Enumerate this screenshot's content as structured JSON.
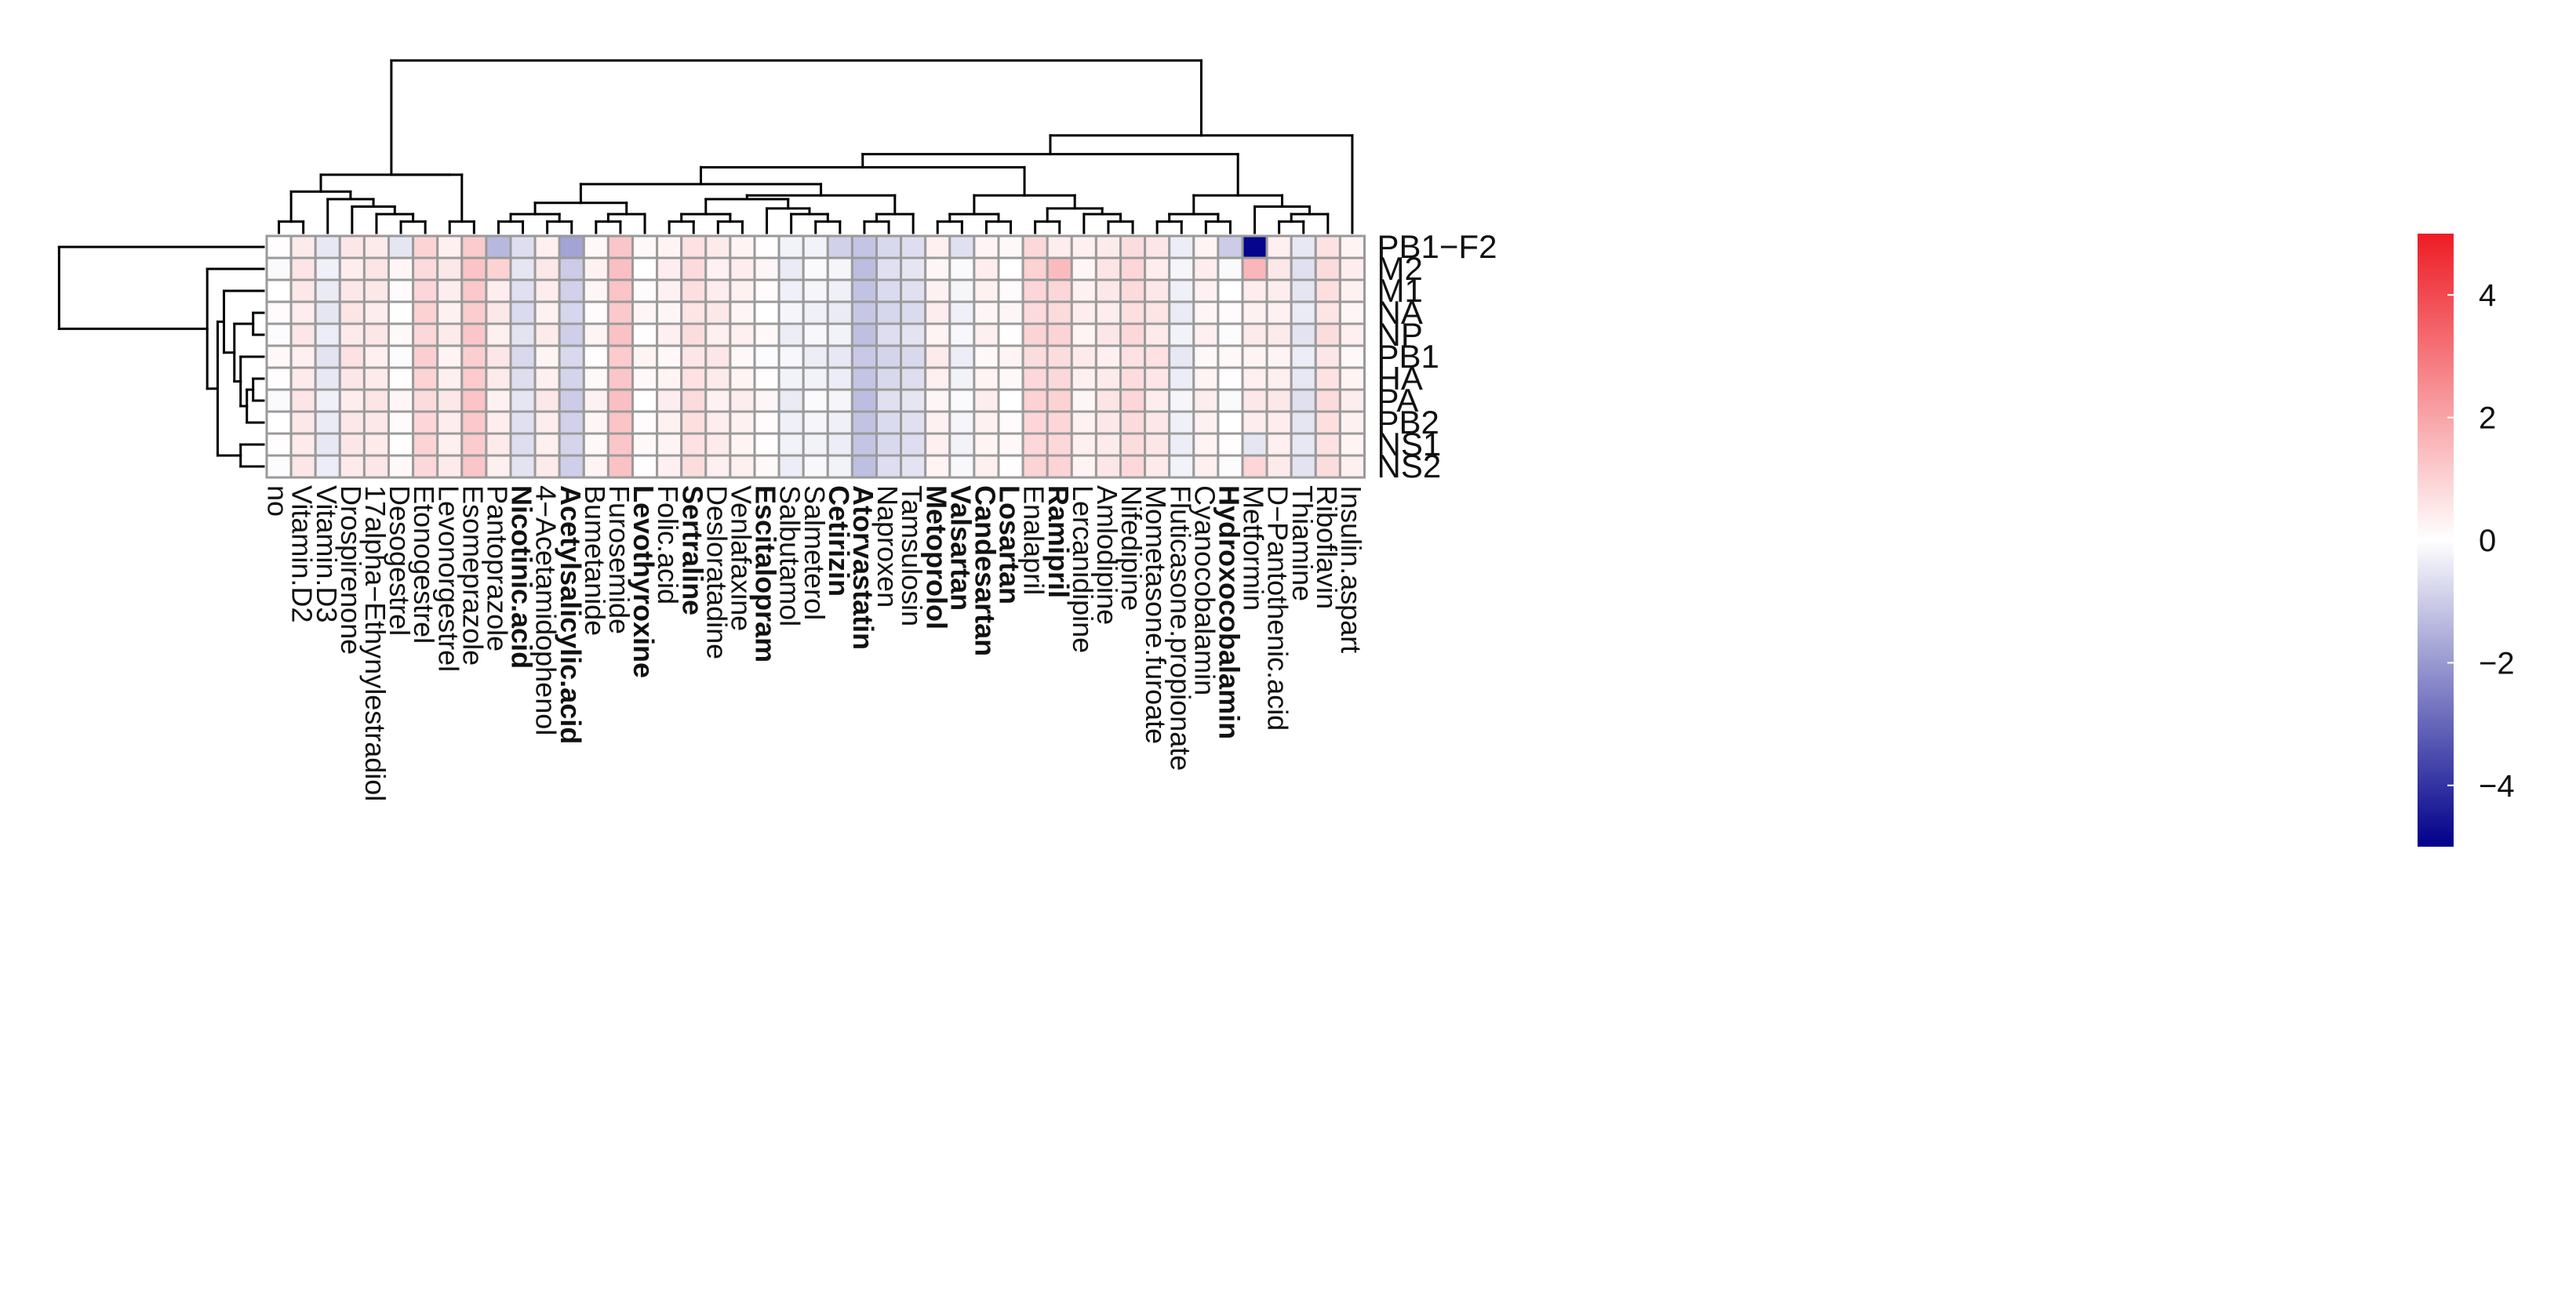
{
  "chart_data": {
    "type": "heatmap",
    "title": "",
    "rows": [
      "PB1−F2",
      "M2",
      "M1",
      "NA",
      "NP",
      "PB1",
      "HA",
      "PA",
      "PB2",
      "NS1",
      "NS2"
    ],
    "columns": [
      "no",
      "Vitamin.D2",
      "Vitamin.D3",
      "Drospirenone",
      "17alpha−Ethynylestradiol",
      "Desogestrel",
      "Etonogestrel",
      "Levonorgestrel",
      "Esomeprazole",
      "Pantoprazole",
      "Nicotinic.acid",
      "4−Acetamidophenol",
      "Acetylsalicylic.acid",
      "Bumetanide",
      "Furosemide",
      "Levothyroxine",
      "Folic.acid",
      "Sertraline",
      "Desloratadine",
      "Venlafaxine",
      "Escitalopram",
      "Salbutamol",
      "Salmeterol",
      "Cetirizin",
      "Atorvastatin",
      "Naproxen",
      "Tamsulosin",
      "Metoprolol",
      "Valsartan",
      "Candesartan",
      "Losartan",
      "Enalapril",
      "Ramipril",
      "Lercanidipine",
      "Amlodipine",
      "Nifedipine",
      "Mometasone.furoate",
      "Fluticasone.propionate",
      "Cyanocobalamin",
      "Hydroxocobalamin",
      "Metformin",
      "D−Pantothenic.acid",
      "Thiamine",
      "Riboflavin",
      "Insulin.aspart"
    ],
    "bold_columns": [
      "Nicotinic.acid",
      "Acetylsalicylic.acid",
      "Levothyroxine",
      "Sertraline",
      "Escitalopram",
      "Cetirizin",
      "Atorvastatin",
      "Metoprolol",
      "Valsartan",
      "Candesartan",
      "Losartan",
      "Ramipril",
      "Hydroxocobalamin"
    ],
    "column_base": [
      0.0,
      0.5,
      -0.4,
      0.5,
      0.5,
      0.1,
      0.9,
      0.4,
      1.2,
      0.4,
      -0.6,
      0.4,
      -0.9,
      0.2,
      1.3,
      0.1,
      0.3,
      0.7,
      0.4,
      0.3,
      0.1,
      -0.3,
      -0.2,
      -0.3,
      -1.2,
      -0.7,
      -0.6,
      0.3,
      -0.2,
      0.3,
      0.1,
      0.9,
      0.9,
      0.3,
      0.5,
      0.8,
      0.5,
      -0.3,
      0.3,
      0.0,
      0.4,
      0.4,
      -0.5,
      0.7,
      0.3
    ],
    "overrides": [
      {
        "row": "PB1−F2",
        "column": "Pantoprazole",
        "value": -1.4
      },
      {
        "row": "PB1−F2",
        "column": "Acetylsalicylic.acid",
        "value": -1.8
      },
      {
        "row": "PB1−F2",
        "column": "Hydroxocobalamin",
        "value": -1.0
      },
      {
        "row": "PB1−F2",
        "column": "Metformin",
        "value": -4.9
      },
      {
        "row": "PB1−F2",
        "column": "Ramipril",
        "value": 0.4
      },
      {
        "row": "PB1−F2",
        "column": "Desogestrel",
        "value": -0.5
      },
      {
        "row": "PB1−F2",
        "column": "Valsartan",
        "value": -0.6
      },
      {
        "row": "PB1−F2",
        "column": "Cetirizin",
        "value": -0.9
      },
      {
        "row": "M2",
        "column": "Metformin",
        "value": 1.6
      },
      {
        "row": "M2",
        "column": "Ramipril",
        "value": 1.5
      },
      {
        "row": "M2",
        "column": "Pantoprazole",
        "value": 1.0
      },
      {
        "row": "NS2",
        "column": "Metformin",
        "value": 0.9
      },
      {
        "row": "NS1",
        "column": "Metformin",
        "value": -0.5
      }
    ],
    "color_scale": {
      "min": -5,
      "max": 5,
      "low": "#00008B",
      "mid": "#FFFFFF",
      "high": "#EE1C25",
      "legend_ticks": [
        4,
        2,
        0,
        -2,
        -4
      ],
      "legend_tick_labels": [
        "4",
        "2",
        "0",
        "−2",
        "−4"
      ]
    },
    "dendrograms": {
      "columns": true,
      "rows": true,
      "legend_position": "right"
    }
  }
}
